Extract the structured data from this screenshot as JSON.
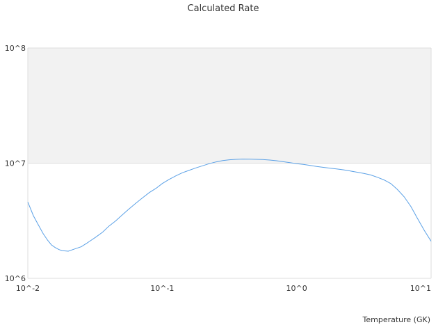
{
  "chart_data": {
    "type": "line",
    "title": "Calculated Rate",
    "xlabel": "Temperature (GK)",
    "ylabel": "",
    "x_scale": "log",
    "y_scale": "log",
    "xlim": [
      0.01,
      10
    ],
    "ylim": [
      1000000,
      100000000
    ],
    "x_ticks": [
      "10^-2",
      "10^-1",
      "10^0",
      "10^1"
    ],
    "y_ticks": [
      "10^6",
      "10^7",
      "10^8"
    ],
    "grid": true,
    "legend": false,
    "colors": {
      "line": "#5aa0e6",
      "band": "#f2f2f2",
      "grid": "#dddddd"
    },
    "shaded_band": [
      10000000,
      100000000
    ],
    "series": [
      {
        "x": [
          0.01,
          0.011,
          0.012,
          0.013,
          0.014,
          0.015,
          0.016,
          0.017,
          0.018,
          0.02,
          0.022,
          0.025,
          0.028,
          0.032,
          0.036,
          0.04,
          0.045,
          0.05,
          0.056,
          0.063,
          0.071,
          0.08,
          0.09,
          0.1,
          0.112,
          0.126,
          0.141,
          0.158,
          0.178,
          0.2,
          0.224,
          0.251,
          0.282,
          0.316,
          0.355,
          0.398,
          0.447,
          0.501,
          0.562,
          0.631,
          0.708,
          0.794,
          0.891,
          1.0,
          1.12,
          1.26,
          1.41,
          1.58,
          1.78,
          2.0,
          2.24,
          2.51,
          2.82,
          3.16,
          3.55,
          3.98,
          4.47,
          5.01,
          5.62,
          6.31,
          7.08,
          7.94,
          8.91,
          10.0
        ],
        "y": [
          4600000,
          3500000,
          2900000,
          2450000,
          2150000,
          1950000,
          1850000,
          1780000,
          1740000,
          1720000,
          1790000,
          1880000,
          2050000,
          2280000,
          2520000,
          2830000,
          3150000,
          3520000,
          3960000,
          4450000,
          4980000,
          5550000,
          6050000,
          6650000,
          7200000,
          7750000,
          8250000,
          8650000,
          9100000,
          9500000,
          9900000,
          10250000,
          10550000,
          10700000,
          10800000,
          10850000,
          10830000,
          10800000,
          10750000,
          10650000,
          10500000,
          10300000,
          10100000,
          9900000,
          9750000,
          9550000,
          9350000,
          9200000,
          9050000,
          8900000,
          8750000,
          8550000,
          8350000,
          8150000,
          7900000,
          7550000,
          7150000,
          6650000,
          5900000,
          5100000,
          4200000,
          3300000,
          2600000,
          2100000
        ]
      }
    ]
  }
}
